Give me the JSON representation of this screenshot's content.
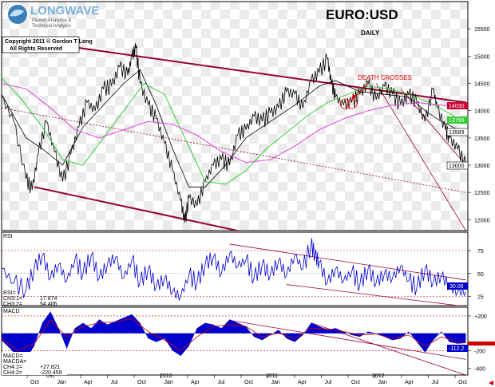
{
  "header": {
    "logo_name": "LONGWAVE",
    "logo_tag1": "Market Analytics &",
    "logo_tag2": "Technical Analysis",
    "copyright_1": "Copyright 2011 © Gordon T Long",
    "copyright_2": "All Rights Reserved",
    "title": "EURO:USD",
    "subtitle": "DAILY"
  },
  "colors": {
    "price": "#000000",
    "ma_short": "#000000",
    "ma_green": "#33cc33",
    "ma_magenta": "#dd44dd",
    "channel": "#990033",
    "rsi": "#0000cc",
    "macd_hist": "#0000cc",
    "macd_signal": "#cc0000",
    "grid_box": "#ebebeb",
    "badge_red": "#cc0033",
    "badge_green": "#33cc33",
    "badge_blue": "#0000cc"
  },
  "chart_data": [
    {
      "type": "line",
      "panel": "price",
      "title": "EURO:USD",
      "subtitle": "DAILY",
      "ylim": [
        11800,
        16000
      ],
      "y_ticks": [
        12000,
        12500,
        13000,
        13500,
        14000,
        14500,
        15000,
        15500
      ],
      "annotation": "DEATH CROSSES",
      "last_values": {
        "ma_magenta": "14030",
        "ma_green": "13766",
        "ma_short": "13589",
        "price": "13000"
      },
      "series": [
        {
          "key": "price",
          "values": [
            [
              0,
              14250
            ],
            [
              0.03,
              13800
            ],
            [
              0.06,
              12750
            ],
            [
              0.075,
              12550
            ],
            [
              0.09,
              13200
            ],
            [
              0.11,
              13800
            ],
            [
              0.13,
              13250
            ],
            [
              0.15,
              12700
            ],
            [
              0.17,
              13200
            ],
            [
              0.19,
              13700
            ],
            [
              0.21,
              14150
            ],
            [
              0.23,
              14000
            ],
            [
              0.25,
              14400
            ],
            [
              0.27,
              14450
            ],
            [
              0.29,
              14800
            ],
            [
              0.31,
              14650
            ],
            [
              0.32,
              15000
            ],
            [
              0.33,
              15150
            ],
            [
              0.34,
              14500
            ],
            [
              0.36,
              14100
            ],
            [
              0.38,
              13850
            ],
            [
              0.4,
              13400
            ],
            [
              0.42,
              12900
            ],
            [
              0.44,
              12350
            ],
            [
              0.45,
              11950
            ],
            [
              0.46,
              12400
            ],
            [
              0.48,
              12250
            ],
            [
              0.5,
              12700
            ],
            [
              0.52,
              13000
            ],
            [
              0.54,
              13100
            ],
            [
              0.56,
              13000
            ],
            [
              0.58,
              13550
            ],
            [
              0.6,
              13650
            ],
            [
              0.62,
              13900
            ],
            [
              0.64,
              13800
            ],
            [
              0.66,
              13950
            ],
            [
              0.68,
              14050
            ],
            [
              0.7,
              14350
            ],
            [
              0.72,
              14300
            ],
            [
              0.74,
              14050
            ],
            [
              0.76,
              14550
            ],
            [
              0.78,
              14700
            ],
            [
              0.8,
              14950
            ],
            [
              0.81,
              14500
            ],
            [
              0.82,
              14250
            ],
            [
              0.84,
              14100
            ],
            [
              0.86,
              14150
            ],
            [
              0.88,
              14300
            ],
            [
              0.9,
              14500
            ],
            [
              0.92,
              14200
            ],
            [
              0.94,
              14450
            ],
            [
              0.96,
              14300
            ],
            [
              0.98,
              14100
            ],
            [
              1.0,
              14300
            ],
            [
              1.02,
              14150
            ],
            [
              1.04,
              13800
            ],
            [
              1.06,
              14400
            ],
            [
              1.07,
              14050
            ],
            [
              1.09,
              13650
            ],
            [
              1.1,
              13500
            ],
            [
              1.12,
              13300
            ],
            [
              1.14,
              13000
            ]
          ]
        },
        {
          "key": "ma_short",
          "values": [
            [
              0,
              14300
            ],
            [
              0.06,
              13500
            ],
            [
              0.1,
              13300
            ],
            [
              0.15,
              13000
            ],
            [
              0.2,
              13700
            ],
            [
              0.25,
              14100
            ],
            [
              0.3,
              14500
            ],
            [
              0.34,
              14750
            ],
            [
              0.38,
              14100
            ],
            [
              0.42,
              13300
            ],
            [
              0.46,
              12600
            ],
            [
              0.5,
              12600
            ],
            [
              0.55,
              13000
            ],
            [
              0.6,
              13500
            ],
            [
              0.66,
              13800
            ],
            [
              0.72,
              14100
            ],
            [
              0.78,
              14450
            ],
            [
              0.82,
              14550
            ],
            [
              0.88,
              14350
            ],
            [
              0.94,
              14300
            ],
            [
              1.0,
              14250
            ],
            [
              1.04,
              14000
            ],
            [
              1.08,
              13800
            ],
            [
              1.14,
              13589
            ]
          ]
        },
        {
          "key": "ma_green",
          "values": [
            [
              0,
              14600
            ],
            [
              0.05,
              14200
            ],
            [
              0.1,
              13700
            ],
            [
              0.15,
              13100
            ],
            [
              0.2,
              13000
            ],
            [
              0.25,
              13500
            ],
            [
              0.3,
              14000
            ],
            [
              0.35,
              14500
            ],
            [
              0.4,
              14300
            ],
            [
              0.45,
              13500
            ],
            [
              0.5,
              12700
            ],
            [
              0.55,
              12650
            ],
            [
              0.6,
              12900
            ],
            [
              0.65,
              13300
            ],
            [
              0.7,
              13600
            ],
            [
              0.75,
              13900
            ],
            [
              0.8,
              14150
            ],
            [
              0.85,
              14300
            ],
            [
              0.9,
              14450
            ],
            [
              0.95,
              14400
            ],
            [
              1.0,
              14300
            ],
            [
              1.05,
              14150
            ],
            [
              1.1,
              13950
            ],
            [
              1.14,
              13766
            ]
          ]
        },
        {
          "key": "ma_magenta",
          "values": [
            [
              0,
              14500
            ],
            [
              0.06,
              14400
            ],
            [
              0.12,
              14050
            ],
            [
              0.18,
              13650
            ],
            [
              0.24,
              13500
            ],
            [
              0.3,
              13650
            ],
            [
              0.36,
              13800
            ],
            [
              0.42,
              13750
            ],
            [
              0.48,
              13550
            ],
            [
              0.54,
              13250
            ],
            [
              0.6,
              13050
            ],
            [
              0.66,
              13100
            ],
            [
              0.72,
              13350
            ],
            [
              0.78,
              13650
            ],
            [
              0.84,
              13850
            ],
            [
              0.9,
              14000
            ],
            [
              0.96,
              14100
            ],
            [
              1.02,
              14150
            ],
            [
              1.08,
              14100
            ],
            [
              1.14,
              14030
            ]
          ]
        }
      ]
    },
    {
      "type": "line",
      "panel": "rsi",
      "ylabel": "RSI",
      "ylim": [
        15,
        95
      ],
      "y_ticks": [
        25,
        50,
        75
      ],
      "readout": [
        {
          "label": "RSI=",
          "value": ""
        },
        {
          "label": "CH3:1=",
          "value": "17.874"
        },
        {
          "label": "CH3:2=",
          "value": "54.406"
        }
      ],
      "last_value": "30.06",
      "values": [
        [
          0,
          55
        ],
        [
          0.03,
          40
        ],
        [
          0.06,
          32
        ],
        [
          0.08,
          55
        ],
        [
          0.1,
          70
        ],
        [
          0.12,
          45
        ],
        [
          0.14,
          60
        ],
        [
          0.16,
          42
        ],
        [
          0.18,
          65
        ],
        [
          0.2,
          50
        ],
        [
          0.22,
          70
        ],
        [
          0.24,
          45
        ],
        [
          0.26,
          60
        ],
        [
          0.28,
          68
        ],
        [
          0.3,
          45
        ],
        [
          0.32,
          65
        ],
        [
          0.34,
          40
        ],
        [
          0.36,
          55
        ],
        [
          0.38,
          35
        ],
        [
          0.4,
          45
        ],
        [
          0.42,
          30
        ],
        [
          0.44,
          25
        ],
        [
          0.46,
          48
        ],
        [
          0.48,
          40
        ],
        [
          0.5,
          60
        ],
        [
          0.52,
          68
        ],
        [
          0.54,
          50
        ],
        [
          0.56,
          72
        ],
        [
          0.58,
          58
        ],
        [
          0.6,
          65
        ],
        [
          0.62,
          45
        ],
        [
          0.64,
          60
        ],
        [
          0.66,
          48
        ],
        [
          0.68,
          64
        ],
        [
          0.7,
          48
        ],
        [
          0.72,
          70
        ],
        [
          0.74,
          55
        ],
        [
          0.76,
          82
        ],
        [
          0.77,
          70
        ],
        [
          0.78,
          62
        ],
        [
          0.8,
          40
        ],
        [
          0.82,
          55
        ],
        [
          0.84,
          42
        ],
        [
          0.86,
          52
        ],
        [
          0.88,
          38
        ],
        [
          0.9,
          55
        ],
        [
          0.92,
          40
        ],
        [
          0.94,
          50
        ],
        [
          0.96,
          45
        ],
        [
          0.98,
          58
        ],
        [
          1.0,
          42
        ],
        [
          1.02,
          35
        ],
        [
          1.04,
          55
        ],
        [
          1.06,
          40
        ],
        [
          1.08,
          48
        ],
        [
          1.1,
          36
        ],
        [
          1.12,
          30
        ],
        [
          1.14,
          30
        ]
      ]
    },
    {
      "type": "area",
      "panel": "macd",
      "ylabel": "MACD",
      "ylim": [
        -480,
        300
      ],
      "y_ticks": [
        -400,
        -200,
        200
      ],
      "y_tick_labels": [
        "-400",
        "-200",
        "+200"
      ],
      "readout": [
        {
          "label": "MACD=",
          "value": ""
        },
        {
          "label": "MACDA=",
          "value": ""
        },
        {
          "label": "CH4:1=",
          "value": "+27.821"
        },
        {
          "label": "CH4:2=",
          "value": "-220.459"
        }
      ],
      "last_value": "-112.2",
      "values": [
        [
          0,
          -80
        ],
        [
          0.03,
          -220
        ],
        [
          0.06,
          -290
        ],
        [
          0.08,
          -150
        ],
        [
          0.1,
          120
        ],
        [
          0.12,
          250
        ],
        [
          0.14,
          60
        ],
        [
          0.16,
          -180
        ],
        [
          0.18,
          60
        ],
        [
          0.2,
          120
        ],
        [
          0.22,
          60
        ],
        [
          0.24,
          160
        ],
        [
          0.26,
          100
        ],
        [
          0.28,
          140
        ],
        [
          0.3,
          180
        ],
        [
          0.32,
          220
        ],
        [
          0.34,
          120
        ],
        [
          0.36,
          -60
        ],
        [
          0.38,
          -100
        ],
        [
          0.4,
          -60
        ],
        [
          0.42,
          -200
        ],
        [
          0.44,
          -260
        ],
        [
          0.46,
          -150
        ],
        [
          0.48,
          60
        ],
        [
          0.5,
          120
        ],
        [
          0.52,
          100
        ],
        [
          0.54,
          60
        ],
        [
          0.56,
          160
        ],
        [
          0.58,
          120
        ],
        [
          0.6,
          80
        ],
        [
          0.62,
          -40
        ],
        [
          0.64,
          -80
        ],
        [
          0.66,
          -20
        ],
        [
          0.68,
          40
        ],
        [
          0.7,
          -60
        ],
        [
          0.72,
          -100
        ],
        [
          0.74,
          -20
        ],
        [
          0.76,
          120
        ],
        [
          0.78,
          80
        ],
        [
          0.8,
          40
        ],
        [
          0.82,
          60
        ],
        [
          0.84,
          20
        ],
        [
          0.86,
          -20
        ],
        [
          0.88,
          -40
        ],
        [
          0.9,
          20
        ],
        [
          0.92,
          0
        ],
        [
          0.94,
          -40
        ],
        [
          0.96,
          -80
        ],
        [
          0.98,
          -60
        ],
        [
          1.0,
          20
        ],
        [
          1.02,
          -100
        ],
        [
          1.04,
          -220
        ],
        [
          1.06,
          -80
        ],
        [
          1.08,
          20
        ],
        [
          1.1,
          -100
        ],
        [
          1.12,
          -120
        ],
        [
          1.14,
          -112
        ]
      ],
      "signal": [
        [
          0,
          -60
        ],
        [
          0.04,
          -200
        ],
        [
          0.08,
          -120
        ],
        [
          0.12,
          150
        ],
        [
          0.16,
          -40
        ],
        [
          0.2,
          80
        ],
        [
          0.24,
          120
        ],
        [
          0.28,
          130
        ],
        [
          0.32,
          170
        ],
        [
          0.36,
          20
        ],
        [
          0.4,
          -80
        ],
        [
          0.44,
          -200
        ],
        [
          0.48,
          -40
        ],
        [
          0.52,
          80
        ],
        [
          0.56,
          100
        ],
        [
          0.6,
          80
        ],
        [
          0.64,
          -40
        ],
        [
          0.68,
          0
        ],
        [
          0.72,
          -60
        ],
        [
          0.76,
          60
        ],
        [
          0.8,
          50
        ],
        [
          0.84,
          20
        ],
        [
          0.88,
          -20
        ],
        [
          0.92,
          -10
        ],
        [
          0.96,
          -60
        ],
        [
          1.0,
          -20
        ],
        [
          1.04,
          -150
        ],
        [
          1.08,
          -40
        ],
        [
          1.12,
          -100
        ],
        [
          1.14,
          -105
        ]
      ]
    }
  ],
  "x_axis": {
    "month_labels": [
      "Oct",
      "Jan",
      "Apr",
      "Jul",
      "Oct",
      "Jan",
      "Apr",
      "Jul",
      "Oct",
      "Jan",
      "Apr",
      "Jul",
      "Oct",
      "Jan",
      "Apr",
      "Jul",
      "Oct"
    ],
    "year_labels": [
      "09",
      "2010",
      "2011",
      "2012"
    ]
  }
}
